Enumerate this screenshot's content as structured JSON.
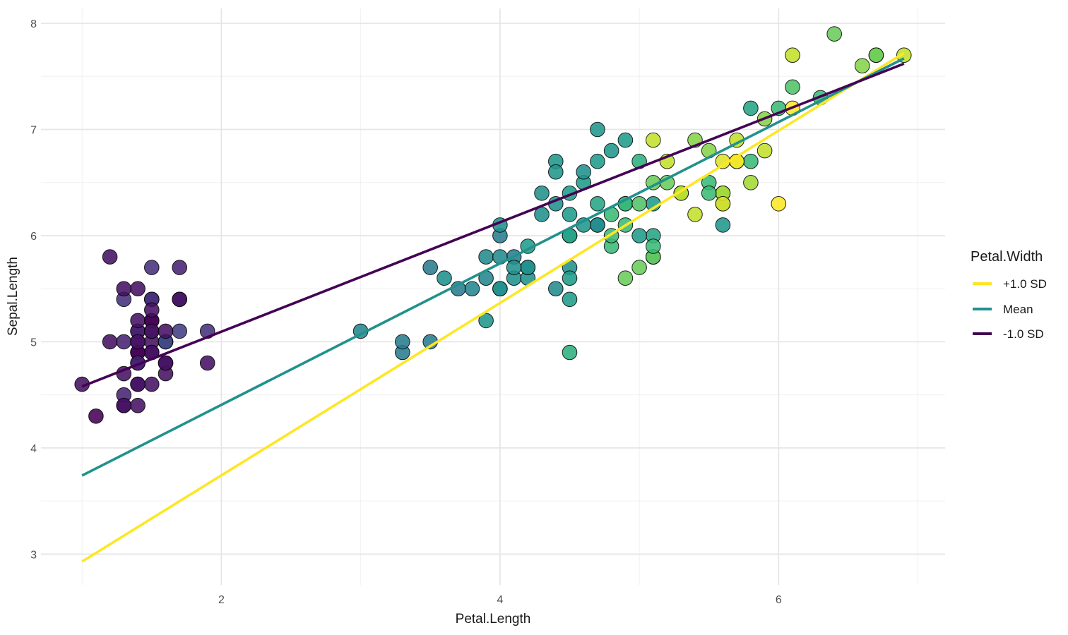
{
  "chart_data": {
    "type": "scatter",
    "title": "",
    "xlabel": "Petal.Length",
    "ylabel": "Sepal.Length",
    "xlim": [
      0.705,
      7.195
    ],
    "ylim": [
      2.71,
      8.14
    ],
    "x_major_ticks": [
      2,
      4,
      6
    ],
    "x_minor_ticks": [
      1,
      3,
      5,
      7
    ],
    "y_major_ticks": [
      3,
      4,
      5,
      6,
      7,
      8
    ],
    "y_minor_ticks": [
      3.5,
      4.5,
      5.5,
      6.5,
      7.5
    ],
    "grid": "major+minor, white background",
    "colors": {
      "background": "#ffffff",
      "grid_major": "#e5e5e5",
      "grid_minor": "#f0f0f0",
      "tick_label": "#4d4d4d",
      "axis_title": "#1a1a1a",
      "point_stroke": "#000000"
    },
    "color_scale": {
      "name": "viridis",
      "mapped_variable": "Petal.Width",
      "domain": [
        0.1,
        2.5
      ],
      "stops": [
        "#440154",
        "#482878",
        "#3E4A89",
        "#31688E",
        "#26828E",
        "#21918C",
        "#1F9E89",
        "#35B779",
        "#6ECE58",
        "#B5DE2B",
        "#FDE725"
      ]
    },
    "legend": {
      "title": "Petal.Width",
      "position": "right",
      "entries": [
        {
          "label": "+1.0 SD",
          "color": "#FDE725"
        },
        {
          "label": "Mean",
          "color": "#21918C"
        },
        {
          "label": "-1.0 SD",
          "color": "#440154"
        }
      ]
    },
    "lines": [
      {
        "name": "plus-1sd-line",
        "label": "+1.0 SD",
        "color": "#FDE725",
        "x": [
          1.0,
          6.9
        ],
        "y": [
          2.93,
          7.72
        ]
      },
      {
        "name": "mean-line",
        "label": "Mean",
        "color": "#21918C",
        "x": [
          1.0,
          6.9
        ],
        "y": [
          3.74,
          7.67
        ]
      },
      {
        "name": "minus-1sd-line",
        "label": "-1.0 SD",
        "color": "#440154",
        "x": [
          1.0,
          6.9
        ],
        "y": [
          4.58,
          7.62
        ]
      }
    ],
    "point_fields": [
      "Petal.Length",
      "Sepal.Length",
      "Petal.Width"
    ],
    "points": [
      [
        1.4,
        5.1,
        0.2
      ],
      [
        1.4,
        4.9,
        0.2
      ],
      [
        1.3,
        4.7,
        0.2
      ],
      [
        1.5,
        4.6,
        0.2
      ],
      [
        1.4,
        5.0,
        0.2
      ],
      [
        1.7,
        5.4,
        0.4
      ],
      [
        1.4,
        4.6,
        0.3
      ],
      [
        1.5,
        5.0,
        0.2
      ],
      [
        1.4,
        4.4,
        0.2
      ],
      [
        1.5,
        4.9,
        0.1
      ],
      [
        1.5,
        5.4,
        0.2
      ],
      [
        1.6,
        4.8,
        0.2
      ],
      [
        1.4,
        4.8,
        0.1
      ],
      [
        1.1,
        4.3,
        0.1
      ],
      [
        1.2,
        5.8,
        0.2
      ],
      [
        1.5,
        5.7,
        0.4
      ],
      [
        1.3,
        5.4,
        0.4
      ],
      [
        1.4,
        5.1,
        0.3
      ],
      [
        1.7,
        5.7,
        0.3
      ],
      [
        1.5,
        5.1,
        0.3
      ],
      [
        1.7,
        5.4,
        0.2
      ],
      [
        1.5,
        5.1,
        0.4
      ],
      [
        1.0,
        4.6,
        0.2
      ],
      [
        1.7,
        5.1,
        0.5
      ],
      [
        1.9,
        4.8,
        0.2
      ],
      [
        1.6,
        5.0,
        0.2
      ],
      [
        1.6,
        5.0,
        0.4
      ],
      [
        1.5,
        5.2,
        0.2
      ],
      [
        1.4,
        5.2,
        0.2
      ],
      [
        1.6,
        4.7,
        0.2
      ],
      [
        1.6,
        4.8,
        0.2
      ],
      [
        1.5,
        5.4,
        0.4
      ],
      [
        1.5,
        5.2,
        0.1
      ],
      [
        1.4,
        5.5,
        0.2
      ],
      [
        1.5,
        4.9,
        0.2
      ],
      [
        1.2,
        5.0,
        0.2
      ],
      [
        1.3,
        5.5,
        0.2
      ],
      [
        1.4,
        4.9,
        0.1
      ],
      [
        1.3,
        4.4,
        0.2
      ],
      [
        1.5,
        5.1,
        0.2
      ],
      [
        1.3,
        5.0,
        0.3
      ],
      [
        1.3,
        4.5,
        0.3
      ],
      [
        1.3,
        4.4,
        0.2
      ],
      [
        1.6,
        5.0,
        0.6
      ],
      [
        1.9,
        5.1,
        0.4
      ],
      [
        1.4,
        4.8,
        0.3
      ],
      [
        1.6,
        5.1,
        0.2
      ],
      [
        1.4,
        4.6,
        0.2
      ],
      [
        1.5,
        5.3,
        0.2
      ],
      [
        1.4,
        5.0,
        0.2
      ],
      [
        4.7,
        7.0,
        1.4
      ],
      [
        4.5,
        6.4,
        1.5
      ],
      [
        4.9,
        6.9,
        1.5
      ],
      [
        4.0,
        5.5,
        1.3
      ],
      [
        4.6,
        6.5,
        1.5
      ],
      [
        4.5,
        5.7,
        1.3
      ],
      [
        4.7,
        6.3,
        1.6
      ],
      [
        3.3,
        4.9,
        1.0
      ],
      [
        4.6,
        6.6,
        1.3
      ],
      [
        3.9,
        5.2,
        1.4
      ],
      [
        3.5,
        5.0,
        1.0
      ],
      [
        4.2,
        5.9,
        1.5
      ],
      [
        4.0,
        6.0,
        1.0
      ],
      [
        4.7,
        6.1,
        1.4
      ],
      [
        3.6,
        5.6,
        1.3
      ],
      [
        4.4,
        6.7,
        1.4
      ],
      [
        4.5,
        5.6,
        1.5
      ],
      [
        4.1,
        5.8,
        1.0
      ],
      [
        4.5,
        6.2,
        1.5
      ],
      [
        3.9,
        5.6,
        1.1
      ],
      [
        4.8,
        5.9,
        1.8
      ],
      [
        4.0,
        6.1,
        1.3
      ],
      [
        4.9,
        6.3,
        1.5
      ],
      [
        4.7,
        6.1,
        1.2
      ],
      [
        4.3,
        6.4,
        1.3
      ],
      [
        4.4,
        6.6,
        1.4
      ],
      [
        4.8,
        6.8,
        1.4
      ],
      [
        5.0,
        6.7,
        1.7
      ],
      [
        4.5,
        6.0,
        1.5
      ],
      [
        3.5,
        5.7,
        1.0
      ],
      [
        3.8,
        5.5,
        1.1
      ],
      [
        3.7,
        5.5,
        1.0
      ],
      [
        3.9,
        5.8,
        1.2
      ],
      [
        5.1,
        6.0,
        1.6
      ],
      [
        4.5,
        5.4,
        1.5
      ],
      [
        4.5,
        6.0,
        1.6
      ],
      [
        4.7,
        6.7,
        1.5
      ],
      [
        4.4,
        6.3,
        1.3
      ],
      [
        4.1,
        5.6,
        1.3
      ],
      [
        4.0,
        5.5,
        1.3
      ],
      [
        4.4,
        5.5,
        1.2
      ],
      [
        4.6,
        6.1,
        1.4
      ],
      [
        4.0,
        5.8,
        1.2
      ],
      [
        3.3,
        5.0,
        1.0
      ],
      [
        4.2,
        5.6,
        1.3
      ],
      [
        4.2,
        5.7,
        1.2
      ],
      [
        4.2,
        5.7,
        1.3
      ],
      [
        4.3,
        6.2,
        1.3
      ],
      [
        3.0,
        5.1,
        1.1
      ],
      [
        4.1,
        5.7,
        1.3
      ],
      [
        6.0,
        6.3,
        2.5
      ],
      [
        5.1,
        5.8,
        1.9
      ],
      [
        5.9,
        7.1,
        2.1
      ],
      [
        5.6,
        6.3,
        1.8
      ],
      [
        5.8,
        6.5,
        2.2
      ],
      [
        6.6,
        7.6,
        2.1
      ],
      [
        4.5,
        4.9,
        1.7
      ],
      [
        6.3,
        7.3,
        1.8
      ],
      [
        5.8,
        6.7,
        1.8
      ],
      [
        6.1,
        7.2,
        2.5
      ],
      [
        5.1,
        6.5,
        2.0
      ],
      [
        5.3,
        6.4,
        1.9
      ],
      [
        5.5,
        6.8,
        2.1
      ],
      [
        5.0,
        5.7,
        2.0
      ],
      [
        5.1,
        5.8,
        2.4
      ],
      [
        5.3,
        6.4,
        2.3
      ],
      [
        5.5,
        6.5,
        1.8
      ],
      [
        6.7,
        7.7,
        2.2
      ],
      [
        6.9,
        7.7,
        2.3
      ],
      [
        5.0,
        6.0,
        1.5
      ],
      [
        5.7,
        6.9,
        2.3
      ],
      [
        4.9,
        5.6,
        2.0
      ],
      [
        6.7,
        7.7,
        2.0
      ],
      [
        4.9,
        6.3,
        1.8
      ],
      [
        5.7,
        6.7,
        2.1
      ],
      [
        6.0,
        7.2,
        1.8
      ],
      [
        4.8,
        6.2,
        1.8
      ],
      [
        4.9,
        6.1,
        1.8
      ],
      [
        5.6,
        6.4,
        2.1
      ],
      [
        5.8,
        7.2,
        1.6
      ],
      [
        6.1,
        7.4,
        1.9
      ],
      [
        6.4,
        7.9,
        2.0
      ],
      [
        5.6,
        6.4,
        2.2
      ],
      [
        5.1,
        6.3,
        1.5
      ],
      [
        5.6,
        6.1,
        1.4
      ],
      [
        6.1,
        7.7,
        2.3
      ],
      [
        5.6,
        6.3,
        2.4
      ],
      [
        5.5,
        6.4,
        1.8
      ],
      [
        4.8,
        6.0,
        1.8
      ],
      [
        5.4,
        6.9,
        2.1
      ],
      [
        5.6,
        6.7,
        2.4
      ],
      [
        5.1,
        6.9,
        2.3
      ],
      [
        5.1,
        5.8,
        1.9
      ],
      [
        5.9,
        6.8,
        2.3
      ],
      [
        5.7,
        6.7,
        2.5
      ],
      [
        5.2,
        6.7,
        2.3
      ],
      [
        5.0,
        6.3,
        1.9
      ],
      [
        5.2,
        6.5,
        2.0
      ],
      [
        5.4,
        6.2,
        2.3
      ],
      [
        5.1,
        5.9,
        1.8
      ]
    ]
  }
}
